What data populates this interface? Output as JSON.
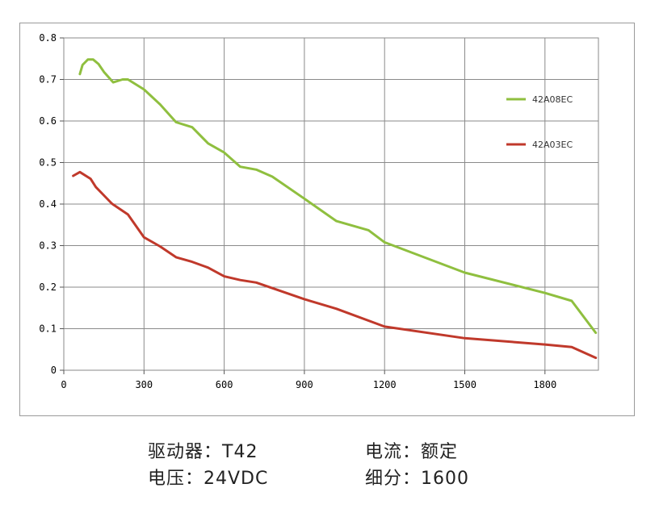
{
  "chart_data": {
    "type": "line",
    "xlim": [
      0,
      2000
    ],
    "ylim": [
      0,
      0.8
    ],
    "x_ticks": [
      "0",
      "300",
      "600",
      "900",
      "1200",
      "1500",
      "1800"
    ],
    "y_ticks": [
      "0",
      "0.1",
      "0.2",
      "0.3",
      "0.4",
      "0.5",
      "0.6",
      "0.7",
      "0.8"
    ],
    "grid": true,
    "legend_position": "right",
    "series": [
      {
        "name": "42A08EC",
        "color": "#8fbf3f",
        "points": [
          [
            60,
            0.713
          ],
          [
            70,
            0.735
          ],
          [
            90,
            0.748
          ],
          [
            110,
            0.748
          ],
          [
            130,
            0.737
          ],
          [
            150,
            0.718
          ],
          [
            185,
            0.693
          ],
          [
            220,
            0.7
          ],
          [
            240,
            0.7
          ],
          [
            300,
            0.676
          ],
          [
            360,
            0.64
          ],
          [
            420,
            0.597
          ],
          [
            480,
            0.585
          ],
          [
            540,
            0.546
          ],
          [
            600,
            0.524
          ],
          [
            660,
            0.49
          ],
          [
            720,
            0.483
          ],
          [
            780,
            0.466
          ],
          [
            900,
            0.413
          ],
          [
            1020,
            0.359
          ],
          [
            1140,
            0.337
          ],
          [
            1200,
            0.308
          ],
          [
            1500,
            0.235
          ],
          [
            1800,
            0.186
          ],
          [
            1900,
            0.167
          ],
          [
            1990,
            0.09
          ]
        ]
      },
      {
        "name": "42A03EC",
        "color": "#c0392b",
        "points": [
          [
            35,
            0.468
          ],
          [
            60,
            0.477
          ],
          [
            100,
            0.461
          ],
          [
            120,
            0.441
          ],
          [
            180,
            0.401
          ],
          [
            240,
            0.375
          ],
          [
            300,
            0.32
          ],
          [
            360,
            0.298
          ],
          [
            420,
            0.272
          ],
          [
            480,
            0.261
          ],
          [
            540,
            0.247
          ],
          [
            600,
            0.226
          ],
          [
            660,
            0.217
          ],
          [
            720,
            0.211
          ],
          [
            900,
            0.171
          ],
          [
            1020,
            0.148
          ],
          [
            1200,
            0.105
          ],
          [
            1500,
            0.077
          ],
          [
            1800,
            0.062
          ],
          [
            1900,
            0.056
          ],
          [
            1990,
            0.03
          ]
        ]
      }
    ]
  },
  "captions": {
    "driver_label": "驱动器：",
    "driver_value": "T42",
    "voltage_label": "电压：",
    "voltage_value": "24VDC",
    "current_label": "电流：",
    "current_value": "额定",
    "microstep_label": "细分：",
    "microstep_value": "1600"
  }
}
